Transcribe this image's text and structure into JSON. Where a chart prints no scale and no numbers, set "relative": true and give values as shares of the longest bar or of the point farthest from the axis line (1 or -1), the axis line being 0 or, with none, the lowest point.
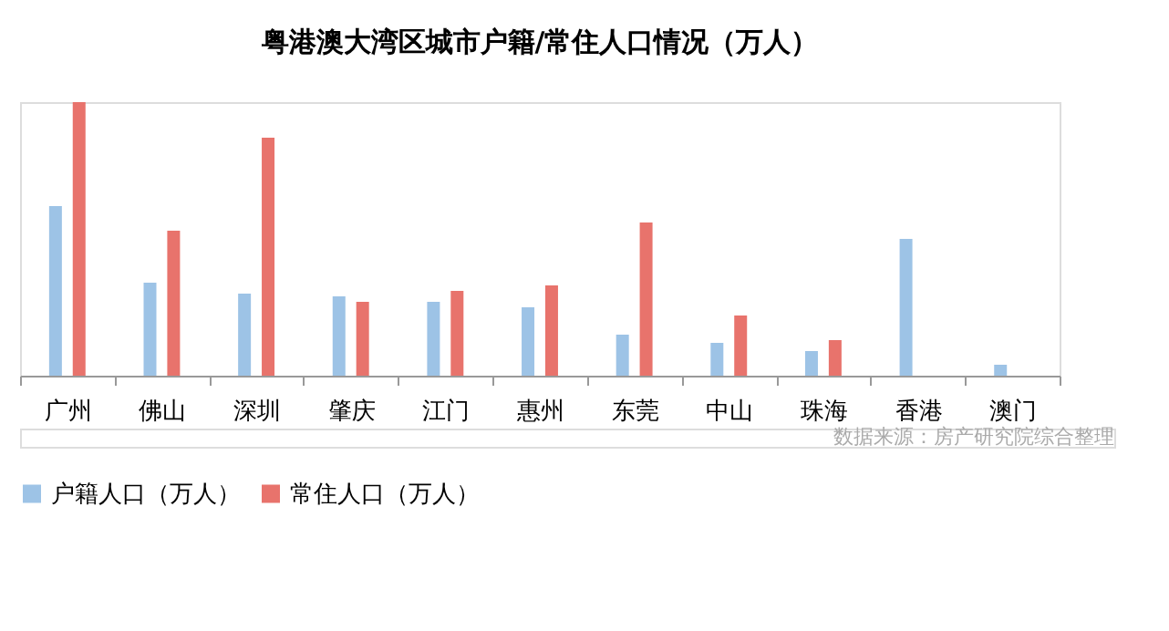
{
  "chart_data": {
    "type": "bar",
    "title": "粤港澳大湾区城市户籍/常住人口情况（万人）",
    "categories": [
      "广州",
      "佛山",
      "深圳",
      "肇庆",
      "江门",
      "惠州",
      "东莞",
      "中山",
      "珠海",
      "香港",
      "澳门"
    ],
    "relative": true,
    "legend": "bottom",
    "grid": false,
    "series": [
      {
        "name": "户籍人口（万人）",
        "color": "#9dc3e6",
        "values": [
          0.62,
          0.34,
          0.3,
          0.29,
          0.27,
          0.25,
          0.15,
          0.12,
          0.09,
          0.5,
          0.04
        ]
      },
      {
        "name": "常住人口（万人）",
        "color": "#e8736c",
        "values": [
          1.0,
          0.53,
          0.87,
          0.27,
          0.31,
          0.33,
          0.56,
          0.22,
          0.13,
          null,
          null
        ]
      }
    ],
    "annotations": [
      "数据来源：房产研究院综合整理"
    ]
  }
}
